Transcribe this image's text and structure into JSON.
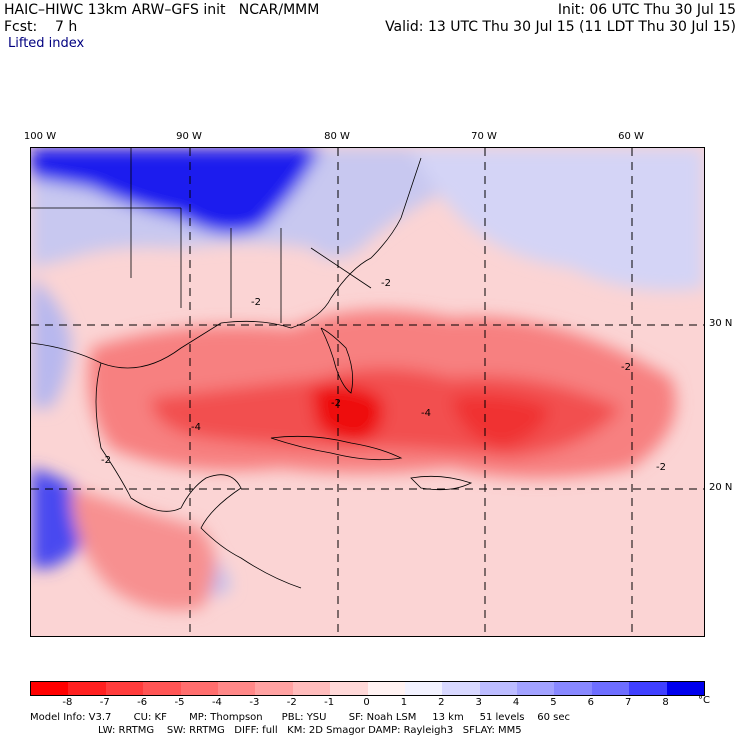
{
  "header": {
    "model": "HAIC–HIWC 13km ARW–GFS init   NCAR/MMM",
    "init": "Init: 06 UTC Thu 30 Jul 15",
    "forecast": "Fcst:    7 h",
    "valid": "Valid: 13 UTC Thu 30 Jul 15 (11 LDT Thu 30 Jul 15)",
    "field": "Lifted index"
  },
  "map": {
    "longitude_labels": [
      "100 W",
      "90 W",
      "80 W",
      "70 W",
      "60 W"
    ],
    "latitude_labels": [
      "30 N",
      "20 N"
    ],
    "contour_labels": [
      "-2",
      "-2",
      "-2",
      "-4",
      "-2",
      "-2",
      "-4",
      "-2"
    ],
    "colors": {
      "strong_negative": "#ff0000",
      "moderate_negative": "#ff6666",
      "weak_negative": "#ffcccc",
      "weak_positive": "#ccccff",
      "strong_positive": "#0000ff"
    }
  },
  "colorbar": {
    "labels": [
      "-8",
      "-7",
      "-6",
      "-5",
      "-4",
      "-3",
      "-2",
      "-1",
      "0",
      "1",
      "2",
      "3",
      "4",
      "5",
      "6",
      "7",
      "8"
    ],
    "unit": "°C",
    "colors": [
      "#ff0000",
      "#ff2020",
      "#ff3c3c",
      "#ff5555",
      "#ff6e6e",
      "#ff8888",
      "#ffa2a2",
      "#ffbcbc",
      "#ffd8d8",
      "#fff2f2",
      "#f2f2ff",
      "#d8d8ff",
      "#bcbcff",
      "#a2a2ff",
      "#8888ff",
      "#6e6eff",
      "#4040ff",
      "#0000ee"
    ]
  },
  "footer": {
    "line1": "Model Info: V3.7       CU: KF       MP: Thompson      PBL: YSU       SF: Noah LSM     13 km     51 levels    60 sec",
    "line2": "LW: RRTMG    SW: RRTMG   DIFF: full   KM: 2D Smagor DAMP: Rayleigh3   SFLAY: MM5"
  }
}
